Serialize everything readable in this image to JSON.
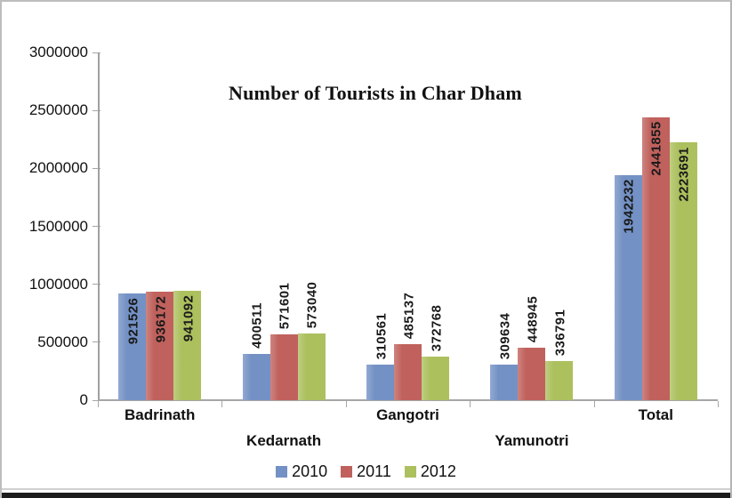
{
  "chart_data": {
    "type": "bar",
    "title": "Number of Tourists in Char Dham",
    "categories": [
      "Badrinath",
      "Kedarnath",
      "Gangotri",
      "Yamunotri",
      "Total"
    ],
    "series": [
      {
        "name": "2010",
        "color": "#7391C4",
        "values": [
          921526,
          400511,
          310561,
          309634,
          1942232
        ]
      },
      {
        "name": "2011",
        "color": "#C0615D",
        "values": [
          936172,
          571601,
          485137,
          448945,
          2441855
        ]
      },
      {
        "name": "2012",
        "color": "#ACC05E",
        "values": [
          941092,
          573040,
          372768,
          336791,
          2223691
        ]
      }
    ],
    "ylim": [
      0,
      3000000
    ],
    "ytick_step": 500000,
    "yticks": [
      0,
      500000,
      1000000,
      1500000,
      2000000,
      2500000,
      3000000
    ],
    "grid": false,
    "legend_position": "bottom",
    "value_labels": "rotated-90-bottom-to-top",
    "category_labels": "staggered-two-rows",
    "axis_color": "#A6A6A6",
    "value_label_color": "#1A1A1A"
  }
}
